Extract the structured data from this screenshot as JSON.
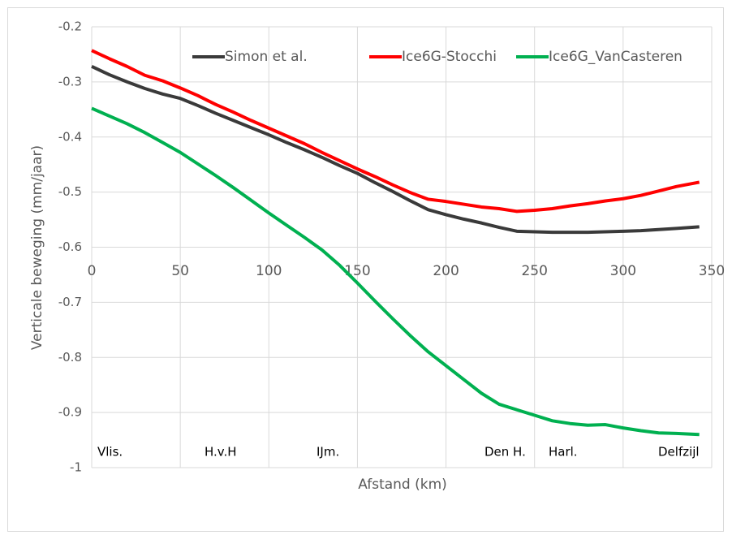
{
  "chart_data": {
    "type": "line",
    "y_label": "Verticale beweging (mm/jaar)",
    "x_label": "Afstand (km)",
    "x": [
      0,
      10,
      20,
      30,
      40,
      50,
      60,
      70,
      80,
      90,
      100,
      110,
      120,
      130,
      140,
      150,
      160,
      170,
      180,
      190,
      200,
      210,
      220,
      230,
      240,
      250,
      260,
      270,
      280,
      290,
      300,
      310,
      320,
      330,
      343
    ],
    "series": [
      {
        "name": "Simon et al.",
        "color": "#3a3a3a",
        "values": [
          -0.272,
          -0.287,
          -0.3,
          -0.312,
          -0.322,
          -0.33,
          -0.343,
          -0.357,
          -0.37,
          -0.383,
          -0.396,
          -0.41,
          -0.423,
          -0.437,
          -0.452,
          -0.466,
          -0.483,
          -0.499,
          -0.516,
          -0.532,
          -0.541,
          -0.549,
          -0.556,
          -0.564,
          -0.571,
          -0.572,
          -0.573,
          -0.573,
          -0.573,
          -0.572,
          -0.571,
          -0.57,
          -0.568,
          -0.566,
          -0.563
        ]
      },
      {
        "name": "Ice6G-Stocchi",
        "color": "#ff0000",
        "values": [
          -0.243,
          -0.258,
          -0.272,
          -0.288,
          -0.298,
          -0.311,
          -0.325,
          -0.341,
          -0.355,
          -0.37,
          -0.384,
          -0.398,
          -0.412,
          -0.428,
          -0.443,
          -0.458,
          -0.472,
          -0.487,
          -0.501,
          -0.513,
          -0.517,
          -0.522,
          -0.527,
          -0.53,
          -0.535,
          -0.533,
          -0.53,
          -0.525,
          -0.521,
          -0.516,
          -0.512,
          -0.506,
          -0.498,
          -0.49,
          -0.482
        ]
      },
      {
        "name": "Ice6G_VanCasteren",
        "color": "#00b050",
        "values": [
          -0.348,
          -0.362,
          -0.376,
          -0.392,
          -0.41,
          -0.428,
          -0.449,
          -0.47,
          -0.492,
          -0.515,
          -0.538,
          -0.56,
          -0.582,
          -0.605,
          -0.633,
          -0.665,
          -0.698,
          -0.73,
          -0.761,
          -0.79,
          -0.815,
          -0.84,
          -0.865,
          -0.885,
          -0.895,
          -0.905,
          -0.915,
          -0.92,
          -0.923,
          -0.922,
          -0.928,
          -0.933,
          -0.937,
          -0.938,
          -0.94
        ]
      }
    ],
    "annotations": [
      "Vlis.",
      "H.v.H",
      "IJm.",
      "Den H.",
      "Harl.",
      "Delfzijl"
    ],
    "xlim": [
      0,
      350
    ],
    "xticks": [
      0,
      50,
      100,
      150,
      200,
      250,
      300,
      350
    ],
    "ylim": [
      -1,
      -0.2
    ],
    "yticks": [
      -0.2,
      -0.3,
      -0.4,
      -0.5,
      -0.6,
      -0.7,
      -0.8,
      -0.9,
      -1
    ],
    "grid": true,
    "legend": "top"
  }
}
